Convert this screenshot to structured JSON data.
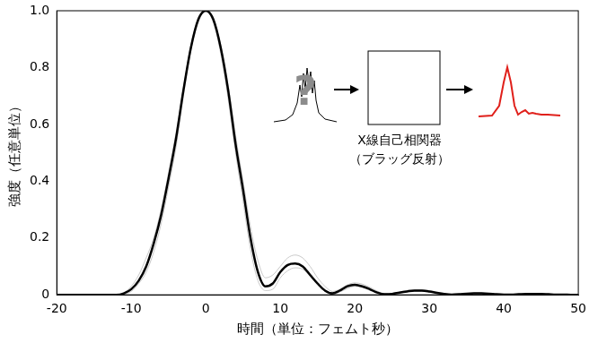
{
  "chart_data": {
    "type": "line",
    "x_label": "時間（単位：フェムト秒）",
    "y_label": "強度（任意単位）",
    "annotations": [
      "?",
      "X線自己相関器",
      "（ブラッグ反射）"
    ],
    "x": [
      -20,
      -19,
      -18,
      -17,
      -16,
      -15,
      -14,
      -13,
      -12,
      -11,
      -10,
      -9,
      -8,
      -7,
      -6,
      -5,
      -4,
      -3,
      -2,
      -1,
      0,
      1,
      2,
      3,
      4,
      5,
      6,
      7,
      8,
      9,
      10,
      11,
      12,
      13,
      14,
      15,
      16,
      17,
      18,
      19,
      20,
      21,
      22,
      23,
      24,
      25,
      26,
      27,
      28,
      29,
      30,
      31,
      32,
      33,
      34,
      35,
      36,
      37,
      38,
      39,
      40,
      41,
      42,
      43,
      44,
      45,
      46,
      47,
      48,
      49,
      50
    ],
    "series": [
      {
        "color": "#c8c8c8",
        "values": [
          0,
          0,
          0,
          0,
          0,
          0,
          0,
          0,
          0.001,
          0.008,
          0.03,
          0.07,
          0.13,
          0.2,
          0.3,
          0.43,
          0.57,
          0.73,
          0.88,
          0.97,
          1.0,
          0.97,
          0.88,
          0.74,
          0.56,
          0.4,
          0.24,
          0.12,
          0.06,
          0.07,
          0.1,
          0.13,
          0.14,
          0.13,
          0.1,
          0.06,
          0.03,
          0.012,
          0.02,
          0.035,
          0.042,
          0.038,
          0.027,
          0.013,
          0.005,
          0.005,
          0.01,
          0.015,
          0.018,
          0.018,
          0.015,
          0.01,
          0.005,
          0.002,
          0.003,
          0.005,
          0.006,
          0.006,
          0.005,
          0.003,
          0.002,
          0.002,
          0.003,
          0.004,
          0.004,
          0.004,
          0.003,
          0.002,
          0.001,
          0,
          0
        ]
      },
      {
        "color": "#c8c8c8",
        "values": [
          0,
          0,
          0,
          0,
          0,
          0,
          0,
          0,
          0,
          0.002,
          0.012,
          0.04,
          0.08,
          0.15,
          0.25,
          0.38,
          0.52,
          0.7,
          0.86,
          0.96,
          1.0,
          0.96,
          0.85,
          0.69,
          0.5,
          0.33,
          0.16,
          0.05,
          0.015,
          0.02,
          0.06,
          0.085,
          0.095,
          0.09,
          0.065,
          0.035,
          0.012,
          0.002,
          0.01,
          0.022,
          0.03,
          0.026,
          0.016,
          0.006,
          0.001,
          0.002,
          0.006,
          0.01,
          0.012,
          0.012,
          0.01,
          0.005,
          0.002,
          0.001,
          0.001,
          0.003,
          0.004,
          0.004,
          0.003,
          0.002,
          0.001,
          0.001,
          0.002,
          0.002,
          0.002,
          0.002,
          0.001,
          0.001,
          0,
          0,
          0
        ]
      },
      {
        "color": "#000000",
        "values": [
          0,
          0,
          0,
          0,
          0,
          0,
          0,
          0,
          0,
          0.005,
          0.02,
          0.05,
          0.1,
          0.18,
          0.28,
          0.41,
          0.55,
          0.72,
          0.87,
          0.97,
          1.0,
          0.97,
          0.87,
          0.72,
          0.53,
          0.37,
          0.2,
          0.08,
          0.03,
          0.04,
          0.08,
          0.105,
          0.11,
          0.1,
          0.07,
          0.04,
          0.015,
          0.005,
          0.015,
          0.03,
          0.035,
          0.03,
          0.02,
          0.008,
          0.002,
          0.003,
          0.008,
          0.012,
          0.015,
          0.015,
          0.012,
          0.007,
          0.003,
          0.001,
          0.002,
          0.004,
          0.005,
          0.005,
          0.004,
          0.002,
          0.001,
          0.001,
          0.002,
          0.003,
          0.003,
          0.003,
          0.002,
          0.001,
          0.001,
          0,
          0
        ]
      }
    ],
    "xlim": [
      -20,
      50
    ],
    "xticks": [
      -20,
      -10,
      0,
      10,
      20,
      30,
      40,
      50
    ],
    "ylim": [
      0,
      1
    ],
    "yticks": [
      0,
      {
        "value": 0.2,
        "label": "0.2"
      },
      {
        "value": 0.4,
        "label": "0.4"
      },
      {
        "value": 0.6,
        "label": "0.6"
      },
      {
        "value": 0.8,
        "label": "0.8"
      },
      {
        "value": 1,
        "label": "1.0"
      }
    ],
    "grid": false
  }
}
